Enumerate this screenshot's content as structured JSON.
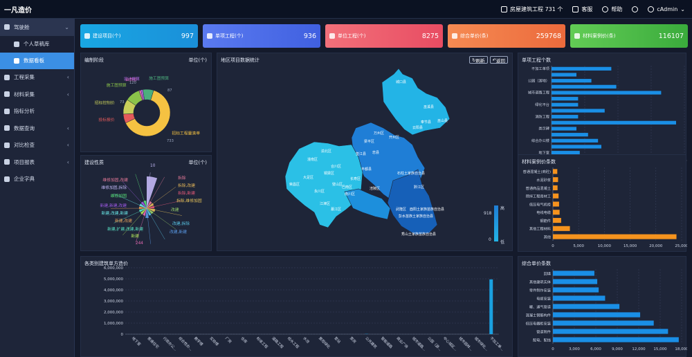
{
  "app": {
    "title": "一凡造价",
    "project_label": "房屋建筑工程 731 个",
    "service_label": "客服",
    "help_label": "帮助",
    "user_label": "cAdmin"
  },
  "sidebar": {
    "items": [
      {
        "label": "驾驶舱",
        "icon": "dashboard-icon"
      },
      {
        "label": "工程采集",
        "icon": "building-icon"
      },
      {
        "label": "材料采集",
        "icon": "cubes-icon"
      },
      {
        "label": "指标分析",
        "icon": "line-chart-icon"
      },
      {
        "label": "数据查询",
        "icon": "search-icon"
      },
      {
        "label": "对比检查",
        "icon": "compare-icon"
      },
      {
        "label": "项目报表",
        "icon": "report-icon"
      },
      {
        "label": "企业字典",
        "icon": "book-icon"
      }
    ],
    "subitems": [
      {
        "label": "个人草稿库",
        "icon": "edit-icon"
      },
      {
        "label": "数据看板",
        "icon": "monitor-icon"
      }
    ]
  },
  "kpis": [
    {
      "label": "建设项目(个)",
      "value": "997",
      "icon": "bank-icon",
      "color": "#1aa0e0"
    },
    {
      "label": "单项工程(个)",
      "value": "936",
      "icon": "cubes-icon",
      "color": "#4c6fe6"
    },
    {
      "label": "单位工程(个)",
      "value": "8275",
      "icon": "cube-icon",
      "color": "#ec5a6a"
    },
    {
      "label": "综合单价(条)",
      "value": "259768",
      "icon": "bar-chart-icon",
      "color": "#f07a48"
    },
    {
      "label": "材料案例价(条)",
      "value": "116107",
      "icon": "cog-icon",
      "color": "#4cc04a"
    }
  ],
  "panels": {
    "stage": {
      "title": "编制阶段",
      "unit": "单位(个)"
    },
    "nature": {
      "title": "建设性质",
      "unit": "单位(个)"
    },
    "map": {
      "title": "地区项目数据统计",
      "refresh": "刷新",
      "back": "返回",
      "legend_high": "高",
      "legend_low": "低",
      "legend_max": "918",
      "legend_min": "0"
    },
    "single": {
      "title": "单项工程个数"
    },
    "material": {
      "title": "材料案例价条数"
    },
    "unitcost": {
      "title": "各类别建筑单方造价"
    },
    "composite": {
      "title": "综合单价条数"
    }
  },
  "map_regions": [
    "城口县",
    "巫溪县",
    "奉节县",
    "巫山县",
    "云阳县",
    "开州区",
    "万州区",
    "梁平区",
    "忠县",
    "垫江县",
    "石柱土家族自治县",
    "丰都县",
    "长寿区",
    "涪陵区",
    "武隆区",
    "彭水苗族土家族自治县",
    "黔江区",
    "酉阳土家族苗族自治县",
    "秀山土家族苗族自治县",
    "南川区",
    "綦江区",
    "江津区",
    "永川区",
    "大足区",
    "潼南区",
    "铜梁区",
    "合川区",
    "荣昌区",
    "璧山区",
    "巴南区",
    "渝北区"
  ],
  "chart_data": [
    {
      "type": "pie",
      "title": "编制阶段",
      "unit": "单位(个)",
      "slices": [
        {
          "name": "招标工程量清单",
          "value": 733,
          "color": "#f5c242"
        },
        {
          "name": "投标报价",
          "value": 73,
          "color": "#e45a5a"
        },
        {
          "name": "招标控制价",
          "value": 120,
          "color": "#c9cf5a"
        },
        {
          "name": "施工图预算",
          "value": 120,
          "color": "#8bc34a"
        },
        {
          "name": "合同价",
          "value": 15,
          "color": "#e86ab5"
        },
        {
          "name": "设计概算",
          "value": 15,
          "color": "#b36ae8"
        },
        {
          "name": "施工图预算",
          "value": 87,
          "color": "#4caf7d"
        }
      ],
      "visible_values": [
        "120",
        "73",
        "87",
        "733"
      ]
    },
    {
      "type": "pie",
      "title": "建设性质",
      "unit": "单位(个)",
      "labels": [
        "10",
        "拆除",
        "拆除,改建",
        "拆除,新建",
        "拆除,维修加固",
        "改建",
        "改建,拆除",
        "改建,新建",
        "244",
        "新建",
        "新建,扩建,改建,新建",
        "新建,改建",
        "新建,改建,新建",
        "新建,新建,改建",
        "维修加固",
        "维修加固,拆除",
        "维修加固,改建"
      ],
      "slices": [
        {
          "name": "新建",
          "value": 244,
          "color": "#c2b7f5"
        },
        {
          "name": "改建,新建",
          "value": 4,
          "color": "#e87a9a"
        },
        {
          "name": "改建,拆除",
          "value": 4,
          "color": "#e8b95a"
        },
        {
          "name": "改建",
          "value": 4,
          "color": "#e85a7a"
        },
        {
          "name": "拆除,维修加固",
          "value": 6,
          "color": "#e8c45a"
        },
        {
          "name": "拆除,新建",
          "value": 4,
          "color": "#9ad36a"
        },
        {
          "name": "拆除,改建",
          "value": 4,
          "color": "#5ac8e8"
        },
        {
          "name": "拆除",
          "value": 10,
          "color": "#5a9ae8"
        },
        {
          "name": "维修加固,改建",
          "value": 4,
          "color": "#e86ab5"
        },
        {
          "name": "维修加固,拆除",
          "value": 4,
          "color": "#b3e85a"
        },
        {
          "name": "维修加固",
          "value": 4,
          "color": "#5ae8c8"
        },
        {
          "name": "新建,新建,改建",
          "value": 4,
          "color": "#e8a05a"
        },
        {
          "name": "新建,改建,新建",
          "value": 4,
          "color": "#6ae8e8"
        },
        {
          "name": "新建,改建",
          "value": 4,
          "color": "#a05ae8"
        },
        {
          "name": "新建,扩建,改建,新建",
          "value": 4,
          "color": "#5ae87a"
        }
      ]
    },
    {
      "type": "bar",
      "orientation": "horizontal",
      "title": "单项工程个数",
      "categories": [
        "不加工单项",
        "公园（游地）",
        "城市道路工程",
        "绿化平台",
        "消防工程",
        "类示碑",
        "综合办公楼",
        "地下室"
      ],
      "rows": [
        {
          "label": "不加工单项",
          "value": 18
        },
        {
          "label": "",
          "value": 7.5
        },
        {
          "label": "公园（游地）",
          "value": 12
        },
        {
          "label": "",
          "value": 19.5
        },
        {
          "label": "城市道路工程",
          "value": 33
        },
        {
          "label": "",
          "value": 8
        },
        {
          "label": "绿化平台",
          "value": 8
        },
        {
          "label": "",
          "value": 16
        },
        {
          "label": "消防工程",
          "value": 8
        },
        {
          "label": "",
          "value": 37.5
        },
        {
          "label": "类示碑",
          "value": 7.5
        },
        {
          "label": "",
          "value": 11
        },
        {
          "label": "综合办公楼",
          "value": 14
        },
        {
          "label": "",
          "value": 15
        },
        {
          "label": "地下室",
          "value": 8.5
        }
      ],
      "xticks": [
        "0",
        "10",
        "20",
        "30",
        "40"
      ],
      "xlim": [
        0,
        40
      ],
      "color": "#1a8fe6"
    },
    {
      "type": "bar",
      "orientation": "horizontal",
      "title": "材料案例价条数",
      "categories": [
        "普通混凝土(商砼)",
        "水泥砂浆",
        "普通商品混凝土",
        "预拌工程用材工",
        "低压电气机柜",
        "电线电缆",
        "钢筋件",
        "其他工程材料",
        "其他"
      ],
      "values": [
        850,
        1000,
        900,
        1100,
        1200,
        1300,
        1600,
        3300,
        24000
      ],
      "xticks": [
        "0",
        "5,000",
        "10,000",
        "15,000",
        "20,000",
        "25,000"
      ],
      "xlim": [
        0,
        25000
      ],
      "color": "#f5931e"
    },
    {
      "type": "bar",
      "title": "各类别建筑单方造价",
      "categories": [
        "地下室",
        "普通住宅",
        "行政办公...",
        "综合性办...",
        "教学楼",
        "实验楼",
        "厂房",
        "仓库",
        "标准工程",
        "道路工程",
        "给水工程",
        "水池",
        "景观绿化",
        "泵站",
        "泵房",
        "公共建筑",
        "智能道路",
        "商业广场",
        "城市道路...",
        "公园（游...",
        "中心城区...",
        "城市园林...",
        "城市绿化...",
        "不加工单..."
      ],
      "values": [
        0,
        0,
        0,
        0,
        0,
        0,
        0,
        0,
        0,
        0,
        0,
        0,
        0,
        0,
        0,
        20000,
        0,
        0,
        0,
        0,
        0,
        0,
        0,
        4950000
      ],
      "yticks": [
        "0",
        "1,000,000",
        "2,000,000",
        "3,000,000",
        "4,000,000",
        "5,000,000",
        "6,000,000"
      ],
      "ylim": [
        0,
        6000000
      ],
      "color": "#1aa0e0"
    },
    {
      "type": "bar",
      "orientation": "horizontal",
      "title": "综合单价条数",
      "categories": [
        "回填",
        "其他建筑实体",
        "零件制作安装",
        "电缆安装",
        "暖、通气管道",
        "混凝土钢筋构件",
        "低压电器柜安装",
        "管道附件",
        "配电、配线"
      ],
      "values": [
        5800,
        6200,
        6400,
        7300,
        9300,
        12200,
        14100,
        16100,
        17600
      ],
      "xticks": [
        "0",
        "3,000",
        "6,000",
        "9,000",
        "12,000",
        "15,000",
        "18,000"
      ],
      "xlim": [
        0,
        18000
      ],
      "color": "#1a8fe6"
    }
  ]
}
